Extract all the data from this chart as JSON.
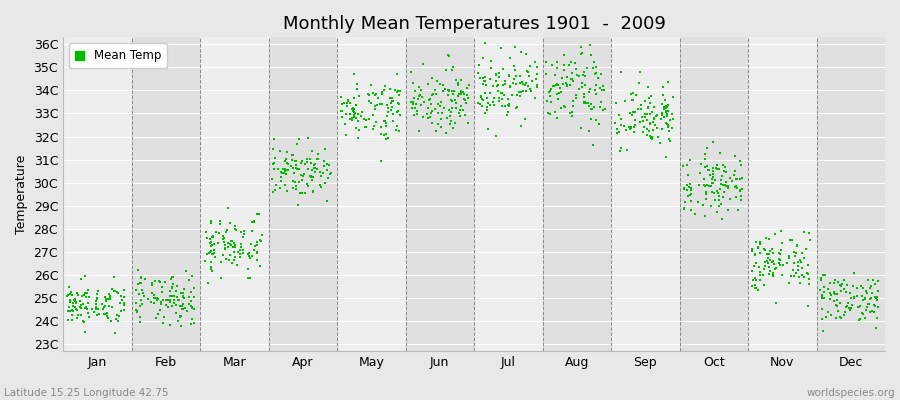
{
  "title": "Monthly Mean Temperatures 1901  -  2009",
  "ylabel": "Temperature",
  "ytick_labels": [
    "23C",
    "24C",
    "25C",
    "26C",
    "27C",
    "28C",
    "29C",
    "30C",
    "31C",
    "32C",
    "33C",
    "34C",
    "35C",
    "36C"
  ],
  "ytick_values": [
    23,
    24,
    25,
    26,
    27,
    28,
    29,
    30,
    31,
    32,
    33,
    34,
    35,
    36
  ],
  "ylim": [
    22.7,
    36.3
  ],
  "month_labels": [
    "Jan",
    "Feb",
    "Mar",
    "Apr",
    "May",
    "Jun",
    "Jul",
    "Aug",
    "Sep",
    "Oct",
    "Nov",
    "Dec"
  ],
  "legend_label": "Mean Temp",
  "dot_color": "#00bb00",
  "dot_size": 2.5,
  "background_color": "#e8e8e8",
  "band_color_light": "#eeeeee",
  "band_color_dark": "#e0e0e0",
  "grid_color": "#ffffff",
  "dashed_line_color": "#888888",
  "subtitle_left": "Latitude 15.25 Longitude 42.75",
  "subtitle_right": "worldspecies.org",
  "years": 109,
  "monthly_means": [
    24.7,
    24.9,
    27.3,
    30.5,
    33.2,
    33.6,
    34.2,
    34.0,
    32.8,
    30.0,
    26.5,
    25.0
  ],
  "monthly_stds": [
    0.45,
    0.55,
    0.65,
    0.55,
    0.65,
    0.65,
    0.75,
    0.85,
    0.75,
    0.65,
    0.65,
    0.55
  ]
}
